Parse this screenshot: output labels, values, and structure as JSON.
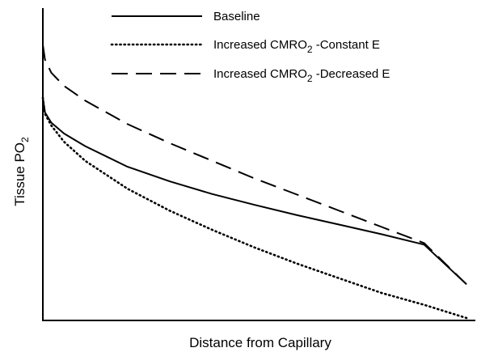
{
  "chart_data": {
    "type": "line",
    "title": "",
    "xlabel": "Distance from Capillary",
    "ylabel_main": "Tissue PO",
    "ylabel_sub": "2",
    "xlim": [
      0,
      1
    ],
    "ylim": [
      0,
      1
    ],
    "grid": false,
    "legend_position": "top-center",
    "x": [
      0,
      0.005,
      0.02,
      0.05,
      0.1,
      0.2,
      0.3,
      0.4,
      0.5,
      0.6,
      0.7,
      0.8,
      0.9,
      1.0
    ],
    "series": [
      {
        "name": "Baseline",
        "name_main": "Baseline",
        "name_sub": "",
        "name_suffix": "",
        "style": "solid",
        "values": [
          0.75,
          0.7,
          0.665,
          0.628,
          0.585,
          0.515,
          0.465,
          0.422,
          0.385,
          0.35,
          0.318,
          0.285,
          0.25,
          0.115
        ]
      },
      {
        "name": "Increased CMRO2 -Constant E",
        "name_main": "Increased CMRO",
        "name_sub": "2",
        "name_suffix": " -Constant E",
        "style": "dotted",
        "values": [
          0.75,
          0.695,
          0.655,
          0.6,
          0.535,
          0.44,
          0.365,
          0.3,
          0.24,
          0.185,
          0.135,
          0.085,
          0.045,
          0.0
        ]
      },
      {
        "name": "Increased CMRO2 -Decreased E",
        "name_main": "Increased CMRO",
        "name_sub": "2",
        "name_suffix": " -Decreased E",
        "style": "dashed",
        "values": [
          0.93,
          0.88,
          0.835,
          0.79,
          0.74,
          0.66,
          0.595,
          0.535,
          0.475,
          0.42,
          0.365,
          0.31,
          0.255,
          0.115
        ]
      }
    ]
  }
}
